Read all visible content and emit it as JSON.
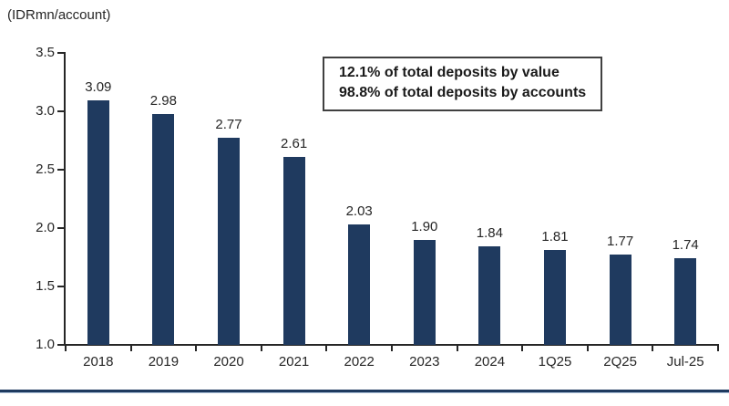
{
  "unit_label": "(IDRmn/account)",
  "annotation": {
    "line1": "12.1% of total deposits by value",
    "line2": "98.8% of total deposits by accounts"
  },
  "colors": {
    "bar": "#1f3a5f",
    "axis": "#262626",
    "bottom_line": "#1f3a5f"
  },
  "chart_data": {
    "type": "bar",
    "title": "",
    "unit": "(IDRmn/account)",
    "categories": [
      "2018",
      "2019",
      "2020",
      "2021",
      "2022",
      "2023",
      "2024",
      "1Q25",
      "2Q25",
      "Jul-25"
    ],
    "values": [
      3.09,
      2.98,
      2.77,
      2.61,
      2.03,
      1.9,
      1.84,
      1.81,
      1.77,
      1.74
    ],
    "data_labels": [
      "3.09",
      "2.98",
      "2.77",
      "2.61",
      "2.03",
      "1.90",
      "1.84",
      "1.81",
      "1.77",
      "1.74"
    ],
    "xlabel": "",
    "ylabel": "",
    "ylim": [
      1.0,
      3.5
    ],
    "ytick_step": 0.5,
    "ytick_labels": [
      "3.5",
      "3.0",
      "2.5",
      "2.0",
      "1.5",
      "1.0"
    ],
    "grid": false,
    "legend": null,
    "annotations": [
      "12.1% of total deposits by value",
      "98.8% of total deposits by accounts"
    ]
  }
}
